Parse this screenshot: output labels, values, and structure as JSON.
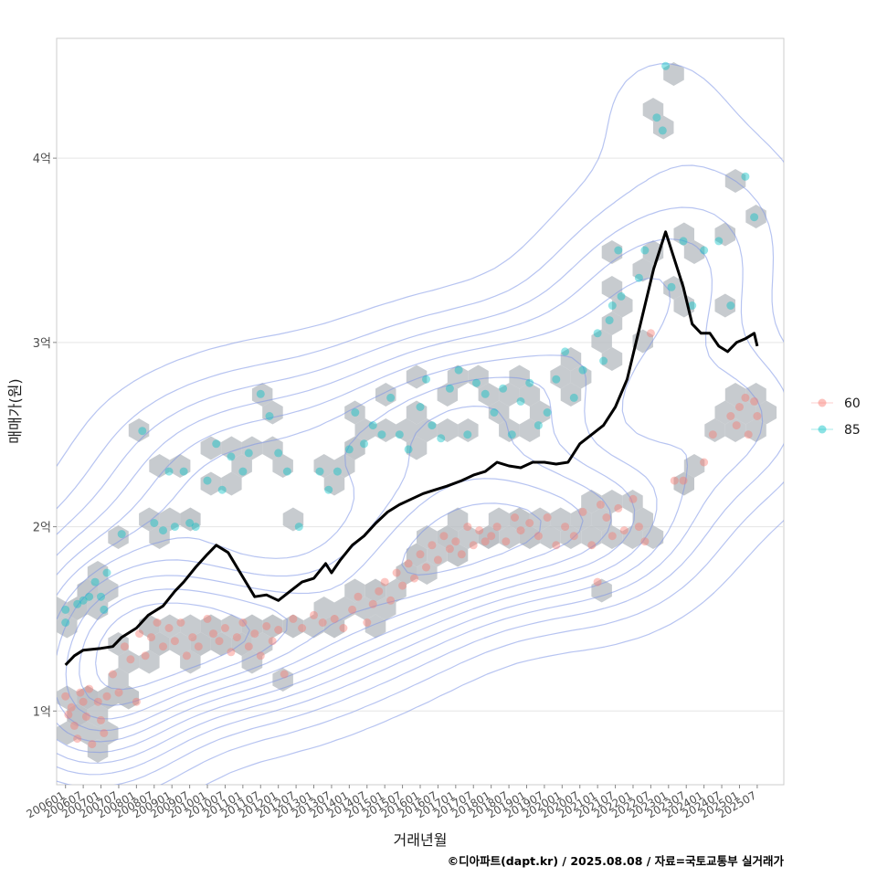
{
  "chart_data": {
    "type": "scatter",
    "xlabel": "거래년월",
    "ylabel": "매매가(원)",
    "caption": "©디아파트(dapt.kr) / 2025.08.08 / 자료=국토교통부 실거래가",
    "y_unit": "억",
    "ylim": [
      0.6,
      4.65
    ],
    "yticks": [
      {
        "value": 1,
        "label": "1억"
      },
      {
        "value": 2,
        "label": "2억"
      },
      {
        "value": 3,
        "label": "3억"
      },
      {
        "value": 4,
        "label": "4억"
      }
    ],
    "xlim": [
      "2005-10",
      "2026-04"
    ],
    "xtick_labels": [
      "200601",
      "200607",
      "200701",
      "200707",
      "200801",
      "200807",
      "200901",
      "200907",
      "201001",
      "201007",
      "201101",
      "201107",
      "201201",
      "201207",
      "201301",
      "201307",
      "201401",
      "201407",
      "201501",
      "201507",
      "201601",
      "201607",
      "201701",
      "201707",
      "201801",
      "201807",
      "201901",
      "201907",
      "202001",
      "202007",
      "202101",
      "202107",
      "202201",
      "202207",
      "202301",
      "202307",
      "202401",
      "202407",
      "202501",
      "202507"
    ],
    "grid": true,
    "legend_position": "right",
    "legend": [
      {
        "name": "60",
        "color": "#F8766D"
      },
      {
        "name": "85",
        "color": "#00BFC4"
      }
    ],
    "layers": [
      "hexbin density (grey)",
      "2D density contours (blue)",
      "transactions scatter by area",
      "moving-average price line (black)"
    ],
    "hexbin_color": "#b9bec3",
    "contour_color": "#7b93e6",
    "line_color": "#000000",
    "series": [
      {
        "name": "60",
        "color": "#F8766D",
        "points": [
          [
            "2006-01",
            1.08
          ],
          [
            "2006-02",
            0.98
          ],
          [
            "2006-03",
            1.02
          ],
          [
            "2006-04",
            0.92
          ],
          [
            "2006-05",
            0.85
          ],
          [
            "2006-06",
            1.1
          ],
          [
            "2006-07",
            1.05
          ],
          [
            "2006-08",
            0.97
          ],
          [
            "2006-09",
            1.12
          ],
          [
            "2006-10",
            0.82
          ],
          [
            "2006-12",
            1.05
          ],
          [
            "2007-01",
            0.95
          ],
          [
            "2007-02",
            0.88
          ],
          [
            "2007-03",
            1.08
          ],
          [
            "2007-05",
            1.2
          ],
          [
            "2007-07",
            1.1
          ],
          [
            "2008-01",
            1.05
          ],
          [
            "2007-09",
            1.35
          ],
          [
            "2007-11",
            1.28
          ],
          [
            "2008-02",
            1.42
          ],
          [
            "2008-04",
            1.3
          ],
          [
            "2008-06",
            1.4
          ],
          [
            "2008-08",
            1.48
          ],
          [
            "2008-10",
            1.35
          ],
          [
            "2008-12",
            1.45
          ],
          [
            "2009-02",
            1.38
          ],
          [
            "2009-04",
            1.48
          ],
          [
            "2009-06",
            1.3
          ],
          [
            "2009-08",
            1.4
          ],
          [
            "2009-10",
            1.35
          ],
          [
            "2010-01",
            1.5
          ],
          [
            "2010-03",
            1.42
          ],
          [
            "2010-05",
            1.38
          ],
          [
            "2010-07",
            1.45
          ],
          [
            "2010-09",
            1.32
          ],
          [
            "2010-11",
            1.4
          ],
          [
            "2011-01",
            1.48
          ],
          [
            "2011-03",
            1.35
          ],
          [
            "2011-05",
            1.42
          ],
          [
            "2011-07",
            1.3
          ],
          [
            "2011-09",
            1.46
          ],
          [
            "2011-11",
            1.38
          ],
          [
            "2012-01",
            1.44
          ],
          [
            "2012-03",
            1.2
          ],
          [
            "2012-06",
            1.5
          ],
          [
            "2012-09",
            1.45
          ],
          [
            "2013-01",
            1.52
          ],
          [
            "2013-04",
            1.48
          ],
          [
            "2013-08",
            1.5
          ],
          [
            "2013-11",
            1.45
          ],
          [
            "2014-02",
            1.55
          ],
          [
            "2014-04",
            1.62
          ],
          [
            "2014-07",
            1.48
          ],
          [
            "2014-09",
            1.58
          ],
          [
            "2014-11",
            1.65
          ],
          [
            "2015-01",
            1.7
          ],
          [
            "2015-03",
            1.6
          ],
          [
            "2015-05",
            1.75
          ],
          [
            "2015-07",
            1.68
          ],
          [
            "2015-09",
            1.8
          ],
          [
            "2015-11",
            1.72
          ],
          [
            "2016-01",
            1.85
          ],
          [
            "2016-03",
            1.78
          ],
          [
            "2016-05",
            1.9
          ],
          [
            "2016-07",
            1.82
          ],
          [
            "2016-09",
            1.95
          ],
          [
            "2016-11",
            1.88
          ],
          [
            "2017-01",
            1.92
          ],
          [
            "2017-03",
            1.85
          ],
          [
            "2017-05",
            2.0
          ],
          [
            "2017-07",
            1.9
          ],
          [
            "2017-09",
            1.98
          ],
          [
            "2017-11",
            1.92
          ],
          [
            "2018-01",
            1.95
          ],
          [
            "2018-03",
            2.0
          ],
          [
            "2018-06",
            1.92
          ],
          [
            "2018-09",
            2.05
          ],
          [
            "2018-11",
            1.98
          ],
          [
            "2019-02",
            2.02
          ],
          [
            "2019-05",
            1.95
          ],
          [
            "2019-08",
            2.05
          ],
          [
            "2019-11",
            1.9
          ],
          [
            "2020-02",
            2.0
          ],
          [
            "2020-05",
            1.95
          ],
          [
            "2020-08",
            2.08
          ],
          [
            "2020-11",
            1.9
          ],
          [
            "2021-02",
            2.12
          ],
          [
            "2021-04",
            2.05
          ],
          [
            "2021-06",
            1.95
          ],
          [
            "2021-08",
            2.1
          ],
          [
            "2021-10",
            1.98
          ],
          [
            "2022-01",
            2.15
          ],
          [
            "2022-03",
            2.0
          ],
          [
            "2022-05",
            1.92
          ],
          [
            "2021-01",
            1.7
          ],
          [
            "2022-07",
            3.05
          ],
          [
            "2023-03",
            2.25
          ],
          [
            "2024-01",
            2.35
          ],
          [
            "2024-10",
            2.6
          ],
          [
            "2024-12",
            2.55
          ],
          [
            "2025-01",
            2.65
          ],
          [
            "2025-03",
            2.7
          ],
          [
            "2025-04",
            2.5
          ],
          [
            "2025-06",
            2.68
          ],
          [
            "2025-07",
            2.6
          ],
          [
            "2023-06",
            2.25
          ],
          [
            "2024-04",
            2.5
          ]
        ]
      },
      {
        "name": "85",
        "color": "#00BFC4",
        "points": [
          [
            "2006-01",
            1.55
          ],
          [
            "2006-01",
            1.48
          ],
          [
            "2006-05",
            1.58
          ],
          [
            "2006-07",
            1.6
          ],
          [
            "2006-09",
            1.62
          ],
          [
            "2006-11",
            1.7
          ],
          [
            "2007-01",
            1.62
          ],
          [
            "2007-03",
            1.75
          ],
          [
            "2007-02",
            1.55
          ],
          [
            "2007-08",
            1.96
          ],
          [
            "2008-03",
            2.52
          ],
          [
            "2008-07",
            2.02
          ],
          [
            "2008-10",
            1.98
          ],
          [
            "2008-12",
            2.3
          ],
          [
            "2009-02",
            2.0
          ],
          [
            "2009-05",
            2.3
          ],
          [
            "2009-07",
            2.02
          ],
          [
            "2009-09",
            2.0
          ],
          [
            "2010-01",
            2.25
          ],
          [
            "2010-04",
            2.45
          ],
          [
            "2010-06",
            2.2
          ],
          [
            "2010-09",
            2.38
          ],
          [
            "2011-01",
            2.3
          ],
          [
            "2011-03",
            2.4
          ],
          [
            "2011-07",
            2.72
          ],
          [
            "2011-10",
            2.6
          ],
          [
            "2012-01",
            2.4
          ],
          [
            "2012-04",
            2.3
          ],
          [
            "2012-08",
            2.0
          ],
          [
            "2013-03",
            2.3
          ],
          [
            "2013-06",
            2.2
          ],
          [
            "2013-09",
            2.3
          ],
          [
            "2014-01",
            2.42
          ],
          [
            "2014-03",
            2.62
          ],
          [
            "2014-06",
            2.45
          ],
          [
            "2014-09",
            2.55
          ],
          [
            "2014-12",
            2.5
          ],
          [
            "2015-03",
            2.7
          ],
          [
            "2015-06",
            2.5
          ],
          [
            "2015-09",
            2.42
          ],
          [
            "2016-01",
            2.65
          ],
          [
            "2016-03",
            2.8
          ],
          [
            "2016-05",
            2.55
          ],
          [
            "2016-08",
            2.48
          ],
          [
            "2016-11",
            2.75
          ],
          [
            "2017-02",
            2.85
          ],
          [
            "2017-05",
            2.5
          ],
          [
            "2017-08",
            2.78
          ],
          [
            "2017-11",
            2.72
          ],
          [
            "2018-02",
            2.62
          ],
          [
            "2018-05",
            2.75
          ],
          [
            "2018-08",
            2.5
          ],
          [
            "2018-11",
            2.68
          ],
          [
            "2019-02",
            2.78
          ],
          [
            "2019-05",
            2.55
          ],
          [
            "2019-08",
            2.62
          ],
          [
            "2019-11",
            2.8
          ],
          [
            "2020-02",
            2.95
          ],
          [
            "2020-05",
            2.7
          ],
          [
            "2020-08",
            2.85
          ],
          [
            "2021-01",
            3.05
          ],
          [
            "2021-03",
            2.9
          ],
          [
            "2021-06",
            3.2
          ],
          [
            "2021-09",
            3.25
          ],
          [
            "2022-03",
            3.35
          ],
          [
            "2022-05",
            3.5
          ],
          [
            "2023-02",
            3.3
          ],
          [
            "2023-06",
            3.55
          ],
          [
            "2023-09",
            3.2
          ],
          [
            "2024-01",
            3.5
          ],
          [
            "2024-06",
            3.55
          ],
          [
            "2024-10",
            3.2
          ],
          [
            "2025-03",
            3.9
          ],
          [
            "2025-06",
            3.68
          ],
          [
            "2022-09",
            4.22
          ],
          [
            "2022-11",
            4.15
          ],
          [
            "2022-12",
            4.5
          ],
          [
            "2021-08",
            3.5
          ],
          [
            "2021-05",
            3.12
          ]
        ]
      }
    ],
    "trend_line": {
      "name": "moving average",
      "points": [
        [
          "2006-01",
          1.25
        ],
        [
          "2006-04",
          1.3
        ],
        [
          "2006-07",
          1.33
        ],
        [
          "2007-01",
          1.34
        ],
        [
          "2007-05",
          1.35
        ],
        [
          "2007-08",
          1.4
        ],
        [
          "2008-01",
          1.45
        ],
        [
          "2008-05",
          1.52
        ],
        [
          "2008-10",
          1.57
        ],
        [
          "2009-02",
          1.65
        ],
        [
          "2009-05",
          1.7
        ],
        [
          "2009-09",
          1.78
        ],
        [
          "2010-01",
          1.85
        ],
        [
          "2010-04",
          1.9
        ],
        [
          "2010-08",
          1.86
        ],
        [
          "2010-11",
          1.78
        ],
        [
          "2011-02",
          1.7
        ],
        [
          "2011-05",
          1.62
        ],
        [
          "2011-09",
          1.63
        ],
        [
          "2012-01",
          1.6
        ],
        [
          "2012-05",
          1.65
        ],
        [
          "2012-09",
          1.7
        ],
        [
          "2013-01",
          1.72
        ],
        [
          "2013-05",
          1.8
        ],
        [
          "2013-07",
          1.75
        ],
        [
          "2013-10",
          1.82
        ],
        [
          "2014-02",
          1.9
        ],
        [
          "2014-06",
          1.95
        ],
        [
          "2014-10",
          2.02
        ],
        [
          "2015-02",
          2.08
        ],
        [
          "2015-06",
          2.12
        ],
        [
          "2015-10",
          2.15
        ],
        [
          "2016-02",
          2.18
        ],
        [
          "2016-06",
          2.2
        ],
        [
          "2016-10",
          2.22
        ],
        [
          "2017-03",
          2.25
        ],
        [
          "2017-07",
          2.28
        ],
        [
          "2017-11",
          2.3
        ],
        [
          "2018-03",
          2.35
        ],
        [
          "2018-07",
          2.33
        ],
        [
          "2018-11",
          2.32
        ],
        [
          "2019-03",
          2.35
        ],
        [
          "2019-07",
          2.35
        ],
        [
          "2019-11",
          2.34
        ],
        [
          "2020-03",
          2.35
        ],
        [
          "2020-07",
          2.45
        ],
        [
          "2020-11",
          2.5
        ],
        [
          "2021-03",
          2.55
        ],
        [
          "2021-07",
          2.65
        ],
        [
          "2021-11",
          2.8
        ],
        [
          "2022-02",
          3.0
        ],
        [
          "2022-05",
          3.2
        ],
        [
          "2022-08",
          3.4
        ],
        [
          "2022-10",
          3.5
        ],
        [
          "2022-12",
          3.6
        ],
        [
          "2023-03",
          3.45
        ],
        [
          "2023-06",
          3.3
        ],
        [
          "2023-09",
          3.1
        ],
        [
          "2023-12",
          3.05
        ],
        [
          "2024-03",
          3.05
        ],
        [
          "2024-06",
          2.98
        ],
        [
          "2024-09",
          2.95
        ],
        [
          "2024-12",
          3.0
        ],
        [
          "2025-03",
          3.02
        ],
        [
          "2025-06",
          3.05
        ],
        [
          "2025-07",
          2.98
        ]
      ]
    }
  }
}
